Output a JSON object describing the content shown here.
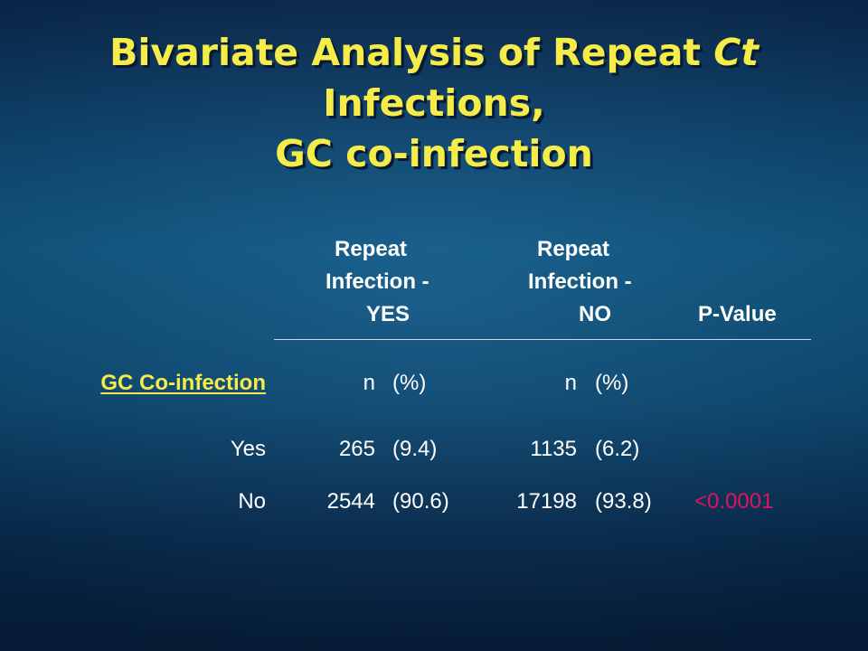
{
  "title": {
    "part1": "Bivariate Analysis of Repeat ",
    "italic": "Ct",
    "line2": "Infections,",
    "line3": "GC co-infection"
  },
  "table": {
    "headers": {
      "yes": [
        "Repeat",
        "Infection -",
        "YES"
      ],
      "no": [
        "Repeat",
        "Infection -",
        "NO"
      ],
      "pvalue": "P-Value"
    },
    "variable_label": "GC Co-infection",
    "subheaders": {
      "yes_n": "n",
      "yes_pct": "(%)",
      "no_n": "n",
      "no_pct": "(%)"
    },
    "rows": [
      {
        "label": "Yes",
        "yes_n": "265",
        "yes_pct": "(9.4)",
        "no_n": "1135",
        "no_pct": "(6.2)",
        "p_value": ""
      },
      {
        "label": "No",
        "yes_n": "2544",
        "yes_pct": "(90.6)",
        "no_n": "17198",
        "no_pct": "(93.8)",
        "p_value": "<0.0001"
      }
    ]
  },
  "colors": {
    "title": "#f5ec4a",
    "text": "#ffffff",
    "p_value_highlight": "#e0145e",
    "background": "#0e5a88"
  }
}
